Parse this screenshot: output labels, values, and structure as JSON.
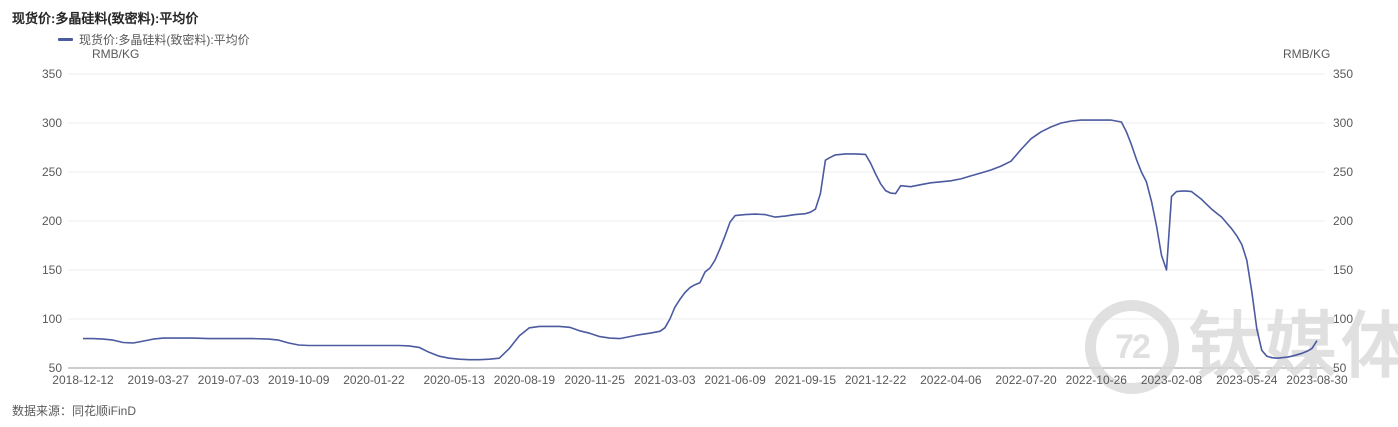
{
  "page": {
    "title": "现货价:多晶硅料(致密料):平均价",
    "source_note": "数据来源：同花顺iFinD",
    "watermark_text": "钛媒体",
    "watermark_logo": "72"
  },
  "chart_data": {
    "type": "line",
    "title": "现货价:多晶硅料(致密料):平均价",
    "legend": [
      {
        "label": "现货价:多晶硅料(致密料):平均价",
        "color": "#4C5AA0"
      }
    ],
    "ylabel_left": "RMB/KG",
    "ylabel_right": "RMB/KG",
    "ylim": [
      50,
      350
    ],
    "y_ticks": [
      350,
      300,
      250,
      200,
      150,
      100,
      50
    ],
    "grid": "horizontal-only",
    "legend_position": "top-left",
    "line_color": "#4C5AA0",
    "grid_color": "#ececec",
    "axis_line_color": "#9b9b9b",
    "x_tick_labels": [
      "2018-12-12",
      "2019-03-27",
      "2019-07-03",
      "2019-10-09",
      "2020-01-22",
      "2020-05-13",
      "2020-08-19",
      "2020-11-25",
      "2021-03-03",
      "2021-06-09",
      "2021-09-15",
      "2021-12-22",
      "2022-04-06",
      "2022-07-20",
      "2022-10-26",
      "2023-02-08",
      "2023-05-24",
      "2023-08-30"
    ],
    "x_range": [
      "2018-12-12",
      "2023-08-30"
    ],
    "series": [
      {
        "name": "现货价:多晶硅料(致密料):平均价",
        "points": [
          [
            "2018-12-12",
            80
          ],
          [
            "2018-12-26",
            80
          ],
          [
            "2019-01-09",
            79.5
          ],
          [
            "2019-01-23",
            78.5
          ],
          [
            "2019-02-06",
            76
          ],
          [
            "2019-02-20",
            75.5
          ],
          [
            "2019-03-06",
            77.5
          ],
          [
            "2019-03-20",
            79.5
          ],
          [
            "2019-04-03",
            80.5
          ],
          [
            "2019-04-24",
            80.5
          ],
          [
            "2019-05-15",
            80.5
          ],
          [
            "2019-06-05",
            80
          ],
          [
            "2019-06-26",
            80
          ],
          [
            "2019-07-17",
            80
          ],
          [
            "2019-08-07",
            80
          ],
          [
            "2019-08-28",
            79.5
          ],
          [
            "2019-09-11",
            78.5
          ],
          [
            "2019-09-25",
            75.5
          ],
          [
            "2019-10-09",
            73.5
          ],
          [
            "2019-10-23",
            73
          ],
          [
            "2019-11-13",
            73
          ],
          [
            "2019-12-04",
            73
          ],
          [
            "2019-12-25",
            73
          ],
          [
            "2020-01-15",
            73
          ],
          [
            "2020-02-05",
            73
          ],
          [
            "2020-02-26",
            73
          ],
          [
            "2020-03-11",
            72.5
          ],
          [
            "2020-03-25",
            71
          ],
          [
            "2020-04-08",
            66
          ],
          [
            "2020-04-22",
            62
          ],
          [
            "2020-05-06",
            60
          ],
          [
            "2020-05-20",
            59
          ],
          [
            "2020-06-03",
            58.5
          ],
          [
            "2020-06-17",
            58.5
          ],
          [
            "2020-07-01",
            59
          ],
          [
            "2020-07-15",
            60
          ],
          [
            "2020-07-29",
            70
          ],
          [
            "2020-08-12",
            83
          ],
          [
            "2020-08-26",
            91
          ],
          [
            "2020-09-09",
            92.5
          ],
          [
            "2020-09-23",
            92.5
          ],
          [
            "2020-10-07",
            92.5
          ],
          [
            "2020-10-21",
            91.5
          ],
          [
            "2020-11-04",
            88
          ],
          [
            "2020-11-18",
            85.5
          ],
          [
            "2020-12-02",
            82
          ],
          [
            "2020-12-16",
            80.5
          ],
          [
            "2020-12-30",
            80
          ],
          [
            "2021-01-13",
            82
          ],
          [
            "2021-01-27",
            84
          ],
          [
            "2021-02-10",
            85.5
          ],
          [
            "2021-02-24",
            87.5
          ],
          [
            "2021-03-03",
            91
          ],
          [
            "2021-03-10",
            100
          ],
          [
            "2021-03-17",
            112
          ],
          [
            "2021-03-24",
            120
          ],
          [
            "2021-03-31",
            127
          ],
          [
            "2021-04-07",
            132
          ],
          [
            "2021-04-14",
            135
          ],
          [
            "2021-04-21",
            137
          ],
          [
            "2021-04-28",
            148
          ],
          [
            "2021-05-05",
            152
          ],
          [
            "2021-05-12",
            160
          ],
          [
            "2021-05-19",
            172
          ],
          [
            "2021-05-26",
            185
          ],
          [
            "2021-06-02",
            199
          ],
          [
            "2021-06-09",
            205.5
          ],
          [
            "2021-06-23",
            206.5
          ],
          [
            "2021-07-07",
            207
          ],
          [
            "2021-07-21",
            206.5
          ],
          [
            "2021-08-04",
            204
          ],
          [
            "2021-08-18",
            205
          ],
          [
            "2021-09-01",
            206.5
          ],
          [
            "2021-09-15",
            207.5
          ],
          [
            "2021-09-22",
            209
          ],
          [
            "2021-09-29",
            212
          ],
          [
            "2021-10-06",
            228
          ],
          [
            "2021-10-13",
            262
          ],
          [
            "2021-10-20",
            265
          ],
          [
            "2021-10-27",
            267.5
          ],
          [
            "2021-11-10",
            268.5
          ],
          [
            "2021-11-24",
            268.5
          ],
          [
            "2021-12-08",
            268
          ],
          [
            "2021-12-15",
            259
          ],
          [
            "2021-12-22",
            248
          ],
          [
            "2021-12-29",
            238
          ],
          [
            "2022-01-05",
            231
          ],
          [
            "2022-01-12",
            228.5
          ],
          [
            "2022-01-19",
            228
          ],
          [
            "2022-01-26",
            236
          ],
          [
            "2022-02-09",
            235
          ],
          [
            "2022-02-23",
            237
          ],
          [
            "2022-03-09",
            239
          ],
          [
            "2022-03-23",
            240
          ],
          [
            "2022-04-06",
            241
          ],
          [
            "2022-04-20",
            243
          ],
          [
            "2022-05-04",
            246
          ],
          [
            "2022-05-18",
            249
          ],
          [
            "2022-06-01",
            252
          ],
          [
            "2022-06-15",
            256
          ],
          [
            "2022-06-29",
            261
          ],
          [
            "2022-07-13",
            273
          ],
          [
            "2022-07-27",
            284
          ],
          [
            "2022-08-10",
            291
          ],
          [
            "2022-08-24",
            296
          ],
          [
            "2022-09-07",
            300
          ],
          [
            "2022-09-21",
            302
          ],
          [
            "2022-10-05",
            303
          ],
          [
            "2022-10-19",
            303
          ],
          [
            "2022-11-02",
            303
          ],
          [
            "2022-11-16",
            303
          ],
          [
            "2022-11-30",
            301
          ],
          [
            "2022-12-07",
            291
          ],
          [
            "2022-12-14",
            278
          ],
          [
            "2022-12-21",
            263
          ],
          [
            "2022-12-28",
            250
          ],
          [
            "2023-01-04",
            240
          ],
          [
            "2023-01-11",
            220
          ],
          [
            "2023-01-18",
            195
          ],
          [
            "2023-01-25",
            165
          ],
          [
            "2023-02-01",
            150
          ],
          [
            "2023-02-08",
            225
          ],
          [
            "2023-02-15",
            230
          ],
          [
            "2023-02-22",
            230.5
          ],
          [
            "2023-03-01",
            230.5
          ],
          [
            "2023-03-08",
            230
          ],
          [
            "2023-03-15",
            226
          ],
          [
            "2023-03-22",
            222
          ],
          [
            "2023-03-29",
            217
          ],
          [
            "2023-04-05",
            212
          ],
          [
            "2023-04-12",
            208
          ],
          [
            "2023-04-19",
            204
          ],
          [
            "2023-04-26",
            198
          ],
          [
            "2023-05-03",
            192
          ],
          [
            "2023-05-10",
            185
          ],
          [
            "2023-05-17",
            176
          ],
          [
            "2023-05-24",
            160
          ],
          [
            "2023-05-31",
            128
          ],
          [
            "2023-06-07",
            90
          ],
          [
            "2023-06-14",
            68
          ],
          [
            "2023-06-21",
            62
          ],
          [
            "2023-06-28",
            60.5
          ],
          [
            "2023-07-05",
            60
          ],
          [
            "2023-07-12",
            60.5
          ],
          [
            "2023-07-19",
            61
          ],
          [
            "2023-07-26",
            62
          ],
          [
            "2023-08-02",
            63.5
          ],
          [
            "2023-08-09",
            65
          ],
          [
            "2023-08-16",
            67
          ],
          [
            "2023-08-23",
            70
          ],
          [
            "2023-08-30",
            78
          ]
        ]
      }
    ]
  }
}
